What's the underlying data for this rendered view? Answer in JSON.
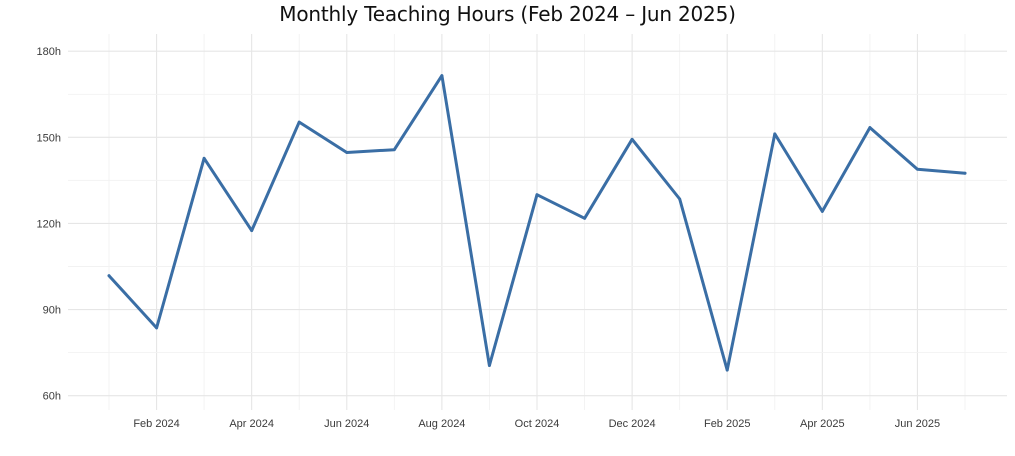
{
  "chart_data": {
    "type": "line",
    "title": "Monthly Teaching Hours (Feb 2024 – Jun 2025)",
    "xlabel": "",
    "ylabel": "",
    "x": [
      "2024-01",
      "2024-02",
      "2024-03",
      "2024-04",
      "2024-05",
      "2024-06",
      "2024-07",
      "2024-08",
      "2024-09",
      "2024-10",
      "2024-11",
      "2024-12",
      "2025-01",
      "2025-02",
      "2025-03",
      "2025-04",
      "2025-05",
      "2025-06",
      "2025-07"
    ],
    "series": [
      {
        "values": [
          101.8,
          83.6,
          142.7,
          117.5,
          155.3,
          144.7,
          145.7,
          171.5,
          70.5,
          130.0,
          121.8,
          149.3,
          128.5,
          68.9,
          151.2,
          124.2,
          153.4,
          138.9,
          137.5
        ]
      }
    ],
    "x_ticks": [
      "Feb 2024",
      "Apr 2024",
      "Jun 2024",
      "Aug 2024",
      "Oct 2024",
      "Dec 2024",
      "Feb 2025",
      "Apr 2025",
      "Jun 2025"
    ],
    "x_tick_months": [
      "2024-02",
      "2024-04",
      "2024-06",
      "2024-08",
      "2024-10",
      "2024-12",
      "2025-02",
      "2025-04",
      "2025-06"
    ],
    "y_ticks": [
      {
        "value": 60,
        "label": "60h"
      },
      {
        "value": 90,
        "label": "90h"
      },
      {
        "value": 120,
        "label": "120h"
      },
      {
        "value": 150,
        "label": "150h"
      },
      {
        "value": 180,
        "label": "180h"
      }
    ],
    "ylim": [
      55,
      186
    ],
    "grid": true,
    "legend": "none",
    "colors": {
      "line": "#3a6ea5",
      "grid_major": "#e6e6e6",
      "grid_minor": "#f2f2f2"
    }
  }
}
